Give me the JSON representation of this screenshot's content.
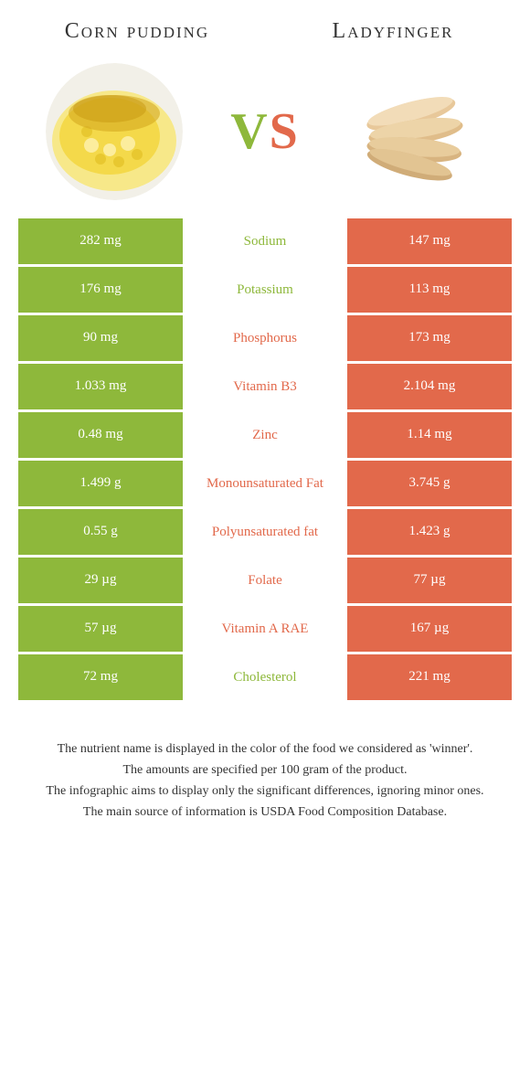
{
  "colors": {
    "left": "#8eb83b",
    "right": "#e2694b",
    "text": "#333333",
    "white": "#ffffff"
  },
  "header": {
    "left_title": "Corn pudding",
    "right_title": "Ladyfinger",
    "vs_v": "V",
    "vs_s": "S"
  },
  "images": {
    "left_bg": "radial-gradient(circle at 40% 40%, #f7e889 0%, #f4d94a 30%, #e8c830 55%, #d4a820 80%)",
    "right_bg": "#ffffff"
  },
  "rows": [
    {
      "left": "282 mg",
      "label": "Sodium",
      "right": "147 mg",
      "winner": "left"
    },
    {
      "left": "176 mg",
      "label": "Potassium",
      "right": "113 mg",
      "winner": "left"
    },
    {
      "left": "90 mg",
      "label": "Phosphorus",
      "right": "173 mg",
      "winner": "right"
    },
    {
      "left": "1.033 mg",
      "label": "Vitamin B3",
      "right": "2.104 mg",
      "winner": "right"
    },
    {
      "left": "0.48 mg",
      "label": "Zinc",
      "right": "1.14 mg",
      "winner": "right"
    },
    {
      "left": "1.499 g",
      "label": "Monounsaturated Fat",
      "right": "3.745 g",
      "winner": "right"
    },
    {
      "left": "0.55 g",
      "label": "Polyunsaturated fat",
      "right": "1.423 g",
      "winner": "right"
    },
    {
      "left": "29 µg",
      "label": "Folate",
      "right": "77 µg",
      "winner": "right"
    },
    {
      "left": "57 µg",
      "label": "Vitamin A RAE",
      "right": "167 µg",
      "winner": "right"
    },
    {
      "left": "72 mg",
      "label": "Cholesterol",
      "right": "221 mg",
      "winner": "left"
    }
  ],
  "footnotes": [
    "The nutrient name is displayed in the color of the food we considered as 'winner'.",
    "The amounts are specified per 100 gram of the product.",
    "The infographic aims to display only the significant differences, ignoring minor ones.",
    "The main source of information is USDA Food Composition Database."
  ]
}
